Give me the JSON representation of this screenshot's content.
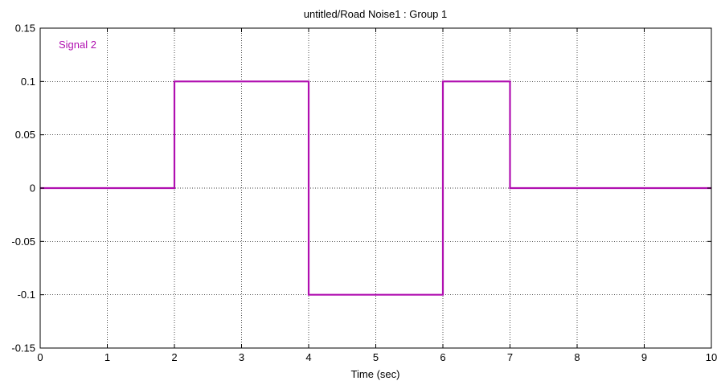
{
  "chart_data": {
    "type": "line",
    "title": "untitled/Road Noise1 : Group 1",
    "xlabel": "Time (sec)",
    "ylabel": "",
    "xlim": [
      0,
      10
    ],
    "ylim": [
      -0.15,
      0.15
    ],
    "x_ticks": [
      0,
      1,
      2,
      3,
      4,
      5,
      6,
      7,
      8,
      9,
      10
    ],
    "x_tick_labels": [
      "0",
      "1",
      "2",
      "3",
      "4",
      "5",
      "6",
      "7",
      "8",
      "9",
      "10"
    ],
    "y_ticks": [
      0.15,
      0.1,
      0.05,
      0,
      -0.05,
      -0.1,
      -0.15
    ],
    "y_tick_labels": [
      "0.15",
      "0.1",
      "0.05",
      "0",
      "-0.05",
      "-0.1",
      "-0.15"
    ],
    "grid": true,
    "grid_style": "dotted",
    "legend_position": "top-left",
    "series": [
      {
        "name": "Signal 2",
        "color": "#b010b0",
        "step": true,
        "x": [
          0,
          2,
          2,
          4,
          4,
          6,
          6,
          7,
          7,
          10
        ],
        "y": [
          0,
          0,
          0.1,
          0.1,
          -0.1,
          -0.1,
          0.1,
          0.1,
          0,
          0
        ]
      }
    ]
  }
}
